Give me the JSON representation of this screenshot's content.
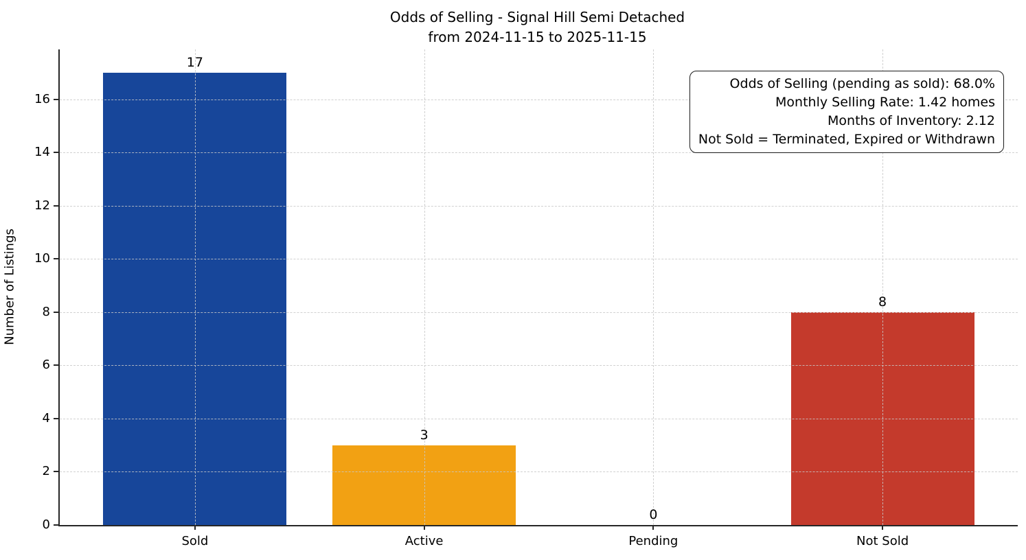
{
  "chart_data": {
    "type": "bar",
    "title": "Odds of Selling - Signal Hill Semi Detached",
    "subtitle": "from 2024-11-15 to 2025-11-15",
    "ylabel": "Number of Listings",
    "xlabel": "",
    "categories": [
      "Sold",
      "Active",
      "Pending",
      "Not Sold"
    ],
    "values": [
      17,
      3,
      0,
      8
    ],
    "value_labels": [
      "17",
      "3",
      "0",
      "8"
    ],
    "bar_colors": [
      "#17469A",
      "#F2A113",
      null,
      "#C43A2C"
    ],
    "yticks": [
      0,
      2,
      4,
      6,
      8,
      10,
      12,
      14,
      16
    ],
    "ylim": [
      0,
      17.88
    ],
    "grid": "dashed-both-axes",
    "legend": "none",
    "annotation": [
      "Odds of Selling (pending as sold): 68.0%",
      "Monthly Selling Rate: 1.42 homes",
      "Months of Inventory: 2.12",
      "Not Sold = Terminated, Expired or Withdrawn"
    ]
  }
}
